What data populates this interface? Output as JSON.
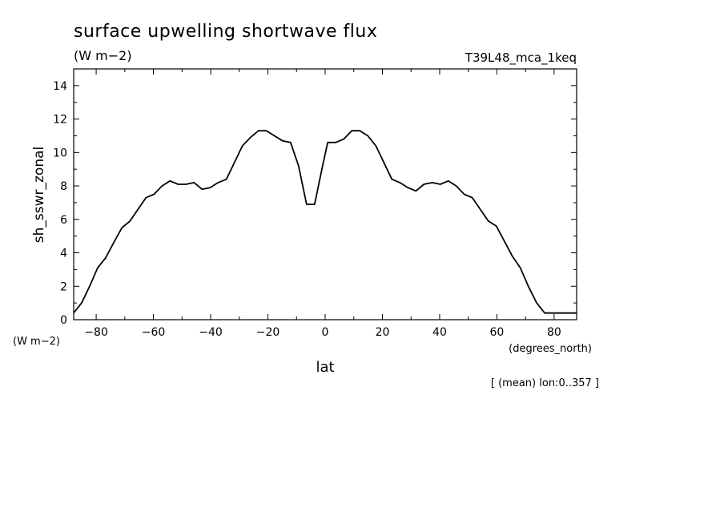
{
  "chart_data": {
    "type": "line",
    "title": "surface upwelling shortwave flux",
    "subtitle": "(W m−2)",
    "dataset_label": "T39L48_mca_1keq",
    "ylabel": "sh_sswr_zonal",
    "yunit": "(W m−2)",
    "xlabel": "lat",
    "xunit": "(degrees_north)",
    "note": "[ (mean) lon:0..357 ]",
    "xlim": [
      -87.86,
      87.86
    ],
    "ylim": [
      0,
      15
    ],
    "xticks": [
      -80,
      -60,
      -40,
      -20,
      0,
      20,
      40,
      60,
      80
    ],
    "yticks": [
      0,
      2,
      4,
      6,
      8,
      10,
      12,
      14
    ],
    "xtick_labels": [
      "−80",
      "−60",
      "−40",
      "−20",
      "0",
      "20",
      "40",
      "60",
      "80"
    ],
    "ytick_labels": [
      "0",
      "2",
      "4",
      "6",
      "8",
      "10",
      "12",
      "14"
    ],
    "grid": false,
    "series": [
      {
        "x": [
          -87.9,
          -85.1,
          -82.3,
          -79.5,
          -76.7,
          -73.9,
          -71.0,
          -68.2,
          -65.4,
          -62.6,
          -59.8,
          -57.0,
          -54.2,
          -51.4,
          -48.6,
          -45.8,
          -43.0,
          -40.2,
          -37.4,
          -34.5,
          -31.7,
          -28.9,
          -26.1,
          -23.3,
          -20.5,
          -17.7,
          -14.9,
          -12.1,
          -9.3,
          -6.5,
          -3.7,
          -0.9,
          0.9,
          3.7,
          6.5,
          9.3,
          12.1,
          14.9,
          17.7,
          20.5,
          23.3,
          26.1,
          28.9,
          31.7,
          34.5,
          37.4,
          40.2,
          43.0,
          45.8,
          48.6,
          51.4,
          54.2,
          57.0,
          59.8,
          62.6,
          65.4,
          68.2,
          71.0,
          73.9,
          76.7,
          79.5,
          82.3,
          85.1,
          87.9
        ],
        "y": [
          0.4,
          1.0,
          2.0,
          3.1,
          3.7,
          4.6,
          5.5,
          5.9,
          6.6,
          7.3,
          7.5,
          8.0,
          8.3,
          8.1,
          8.1,
          8.2,
          7.8,
          7.9,
          8.2,
          8.4,
          9.4,
          10.4,
          10.9,
          11.3,
          11.3,
          11.0,
          10.7,
          10.6,
          9.2,
          6.9,
          6.9,
          9.2,
          10.6,
          10.6,
          10.8,
          11.3,
          11.3,
          11.0,
          10.4,
          9.4,
          8.4,
          8.2,
          7.9,
          7.7,
          8.1,
          8.2,
          8.1,
          8.3,
          8.0,
          7.5,
          7.3,
          6.6,
          5.9,
          5.6,
          4.7,
          3.8,
          3.1,
          2.0,
          1.0,
          0.4,
          0.4,
          0.4,
          0.4,
          0.4
        ]
      }
    ]
  }
}
